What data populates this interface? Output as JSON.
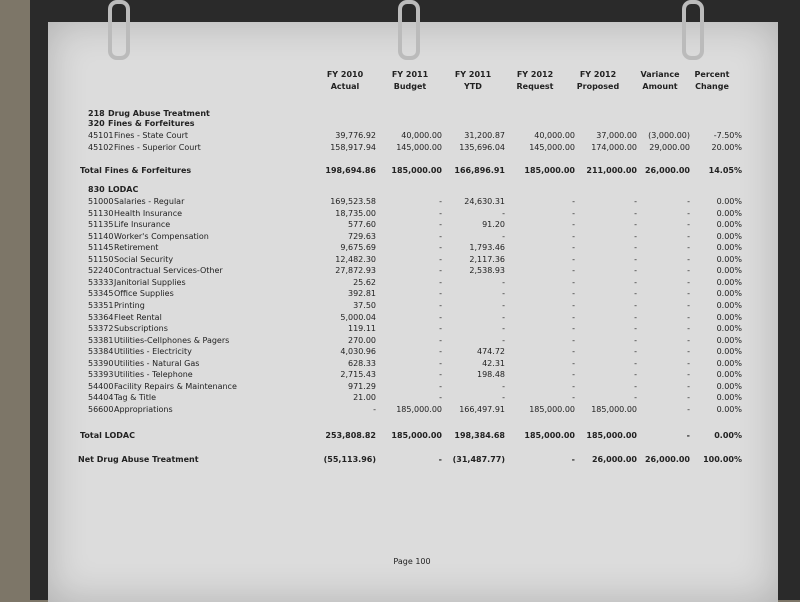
{
  "header": [
    [
      "FY 2010",
      "Actual"
    ],
    [
      "FY 2011",
      "Budget"
    ],
    [
      "FY 2011",
      "YTD"
    ],
    [
      "FY 2012",
      "Request"
    ],
    [
      "FY 2012",
      "Proposed"
    ],
    [
      "Variance",
      "Amount"
    ],
    [
      "Percent",
      "Change"
    ]
  ],
  "title": {
    "code": "218",
    "name": "Drug Abuse Treatment"
  },
  "groups": [
    {
      "code": "320",
      "name": "Fines & Forfeitures",
      "items": [
        {
          "code": "45101",
          "name": "Fines - State Court",
          "values": [
            "39,776.92",
            "40,000.00",
            "31,200.87",
            "40,000.00",
            "37,000.00",
            "(3,000.00)",
            "-7.50%"
          ]
        },
        {
          "code": "45102",
          "name": "Fines - Superior Court",
          "values": [
            "158,917.94",
            "145,000.00",
            "135,696.04",
            "145,000.00",
            "174,000.00",
            "29,000.00",
            "20.00%"
          ]
        }
      ],
      "total": {
        "label": "Total Fines & Forfeitures",
        "values": [
          "198,694.86",
          "185,000.00",
          "166,896.91",
          "185,000.00",
          "211,000.00",
          "26,000.00",
          "14.05%"
        ]
      }
    },
    {
      "code": "830",
      "name": "LODAC",
      "items": [
        {
          "code": "51000",
          "name": "Salaries - Regular",
          "values": [
            "169,523.58",
            "-",
            "24,630.31",
            "-",
            "-",
            "-",
            "0.00%"
          ]
        },
        {
          "code": "51130",
          "name": "Health Insurance",
          "values": [
            "18,735.00",
            "-",
            "-",
            "-",
            "-",
            "-",
            "0.00%"
          ]
        },
        {
          "code": "51135",
          "name": "Life Insurance",
          "values": [
            "577.60",
            "-",
            "91.20",
            "-",
            "-",
            "-",
            "0.00%"
          ]
        },
        {
          "code": "51140",
          "name": "Worker's Compensation",
          "values": [
            "729.63",
            "-",
            "-",
            "-",
            "-",
            "-",
            "0.00%"
          ]
        },
        {
          "code": "51145",
          "name": "Retirement",
          "values": [
            "9,675.69",
            "-",
            "1,793.46",
            "-",
            "-",
            "-",
            "0.00%"
          ]
        },
        {
          "code": "51150",
          "name": "Social Security",
          "values": [
            "12,482.30",
            "-",
            "2,117.36",
            "-",
            "-",
            "-",
            "0.00%"
          ]
        },
        {
          "code": "52240",
          "name": "Contractual Services-Other",
          "values": [
            "27,872.93",
            "-",
            "2,538.93",
            "-",
            "-",
            "-",
            "0.00%"
          ]
        },
        {
          "code": "53333",
          "name": "Janitorial Supplies",
          "values": [
            "25.62",
            "-",
            "-",
            "-",
            "-",
            "-",
            "0.00%"
          ]
        },
        {
          "code": "53345",
          "name": "Office Supplies",
          "values": [
            "392.81",
            "-",
            "-",
            "-",
            "-",
            "-",
            "0.00%"
          ]
        },
        {
          "code": "53351",
          "name": "Printing",
          "values": [
            "37.50",
            "-",
            "-",
            "-",
            "-",
            "-",
            "0.00%"
          ]
        },
        {
          "code": "53364",
          "name": "Fleet Rental",
          "values": [
            "5,000.04",
            "-",
            "-",
            "-",
            "-",
            "-",
            "0.00%"
          ]
        },
        {
          "code": "53372",
          "name": "Subscriptions",
          "values": [
            "119.11",
            "-",
            "-",
            "-",
            "-",
            "-",
            "0.00%"
          ]
        },
        {
          "code": "53381",
          "name": "Utilities-Cellphones & Pagers",
          "values": [
            "270.00",
            "-",
            "-",
            "-",
            "-",
            "-",
            "0.00%"
          ]
        },
        {
          "code": "53384",
          "name": "Utilities - Electricity",
          "values": [
            "4,030.96",
            "-",
            "474.72",
            "-",
            "-",
            "-",
            "0.00%"
          ]
        },
        {
          "code": "53390",
          "name": "Utilities - Natural Gas",
          "values": [
            "628.33",
            "-",
            "42.31",
            "-",
            "-",
            "-",
            "0.00%"
          ]
        },
        {
          "code": "53393",
          "name": "Utilities - Telephone",
          "values": [
            "2,715.43",
            "-",
            "198.48",
            "-",
            "-",
            "-",
            "0.00%"
          ]
        },
        {
          "code": "54400",
          "name": "Facility Repairs & Maintenance",
          "values": [
            "971.29",
            "-",
            "-",
            "-",
            "-",
            "-",
            "0.00%"
          ]
        },
        {
          "code": "54404",
          "name": "Tag & Title",
          "values": [
            "21.00",
            "-",
            "-",
            "-",
            "-",
            "-",
            "0.00%"
          ]
        },
        {
          "code": "56600",
          "name": "Appropriations",
          "values": [
            "-",
            "185,000.00",
            "166,497.91",
            "185,000.00",
            "185,000.00",
            "-",
            "0.00%"
          ]
        }
      ],
      "total": {
        "label": "Total LODAC",
        "values": [
          "253,808.82",
          "185,000.00",
          "198,384.68",
          "185,000.00",
          "185,000.00",
          "-",
          "0.00%"
        ]
      }
    }
  ],
  "net": {
    "label": "Net Drug Abuse Treatment",
    "values": [
      "(55,113.96)",
      "-",
      "(31,487.77)",
      "-",
      "26,000.00",
      "26,000.00",
      "100.00%"
    ]
  },
  "footer": "Page 100"
}
